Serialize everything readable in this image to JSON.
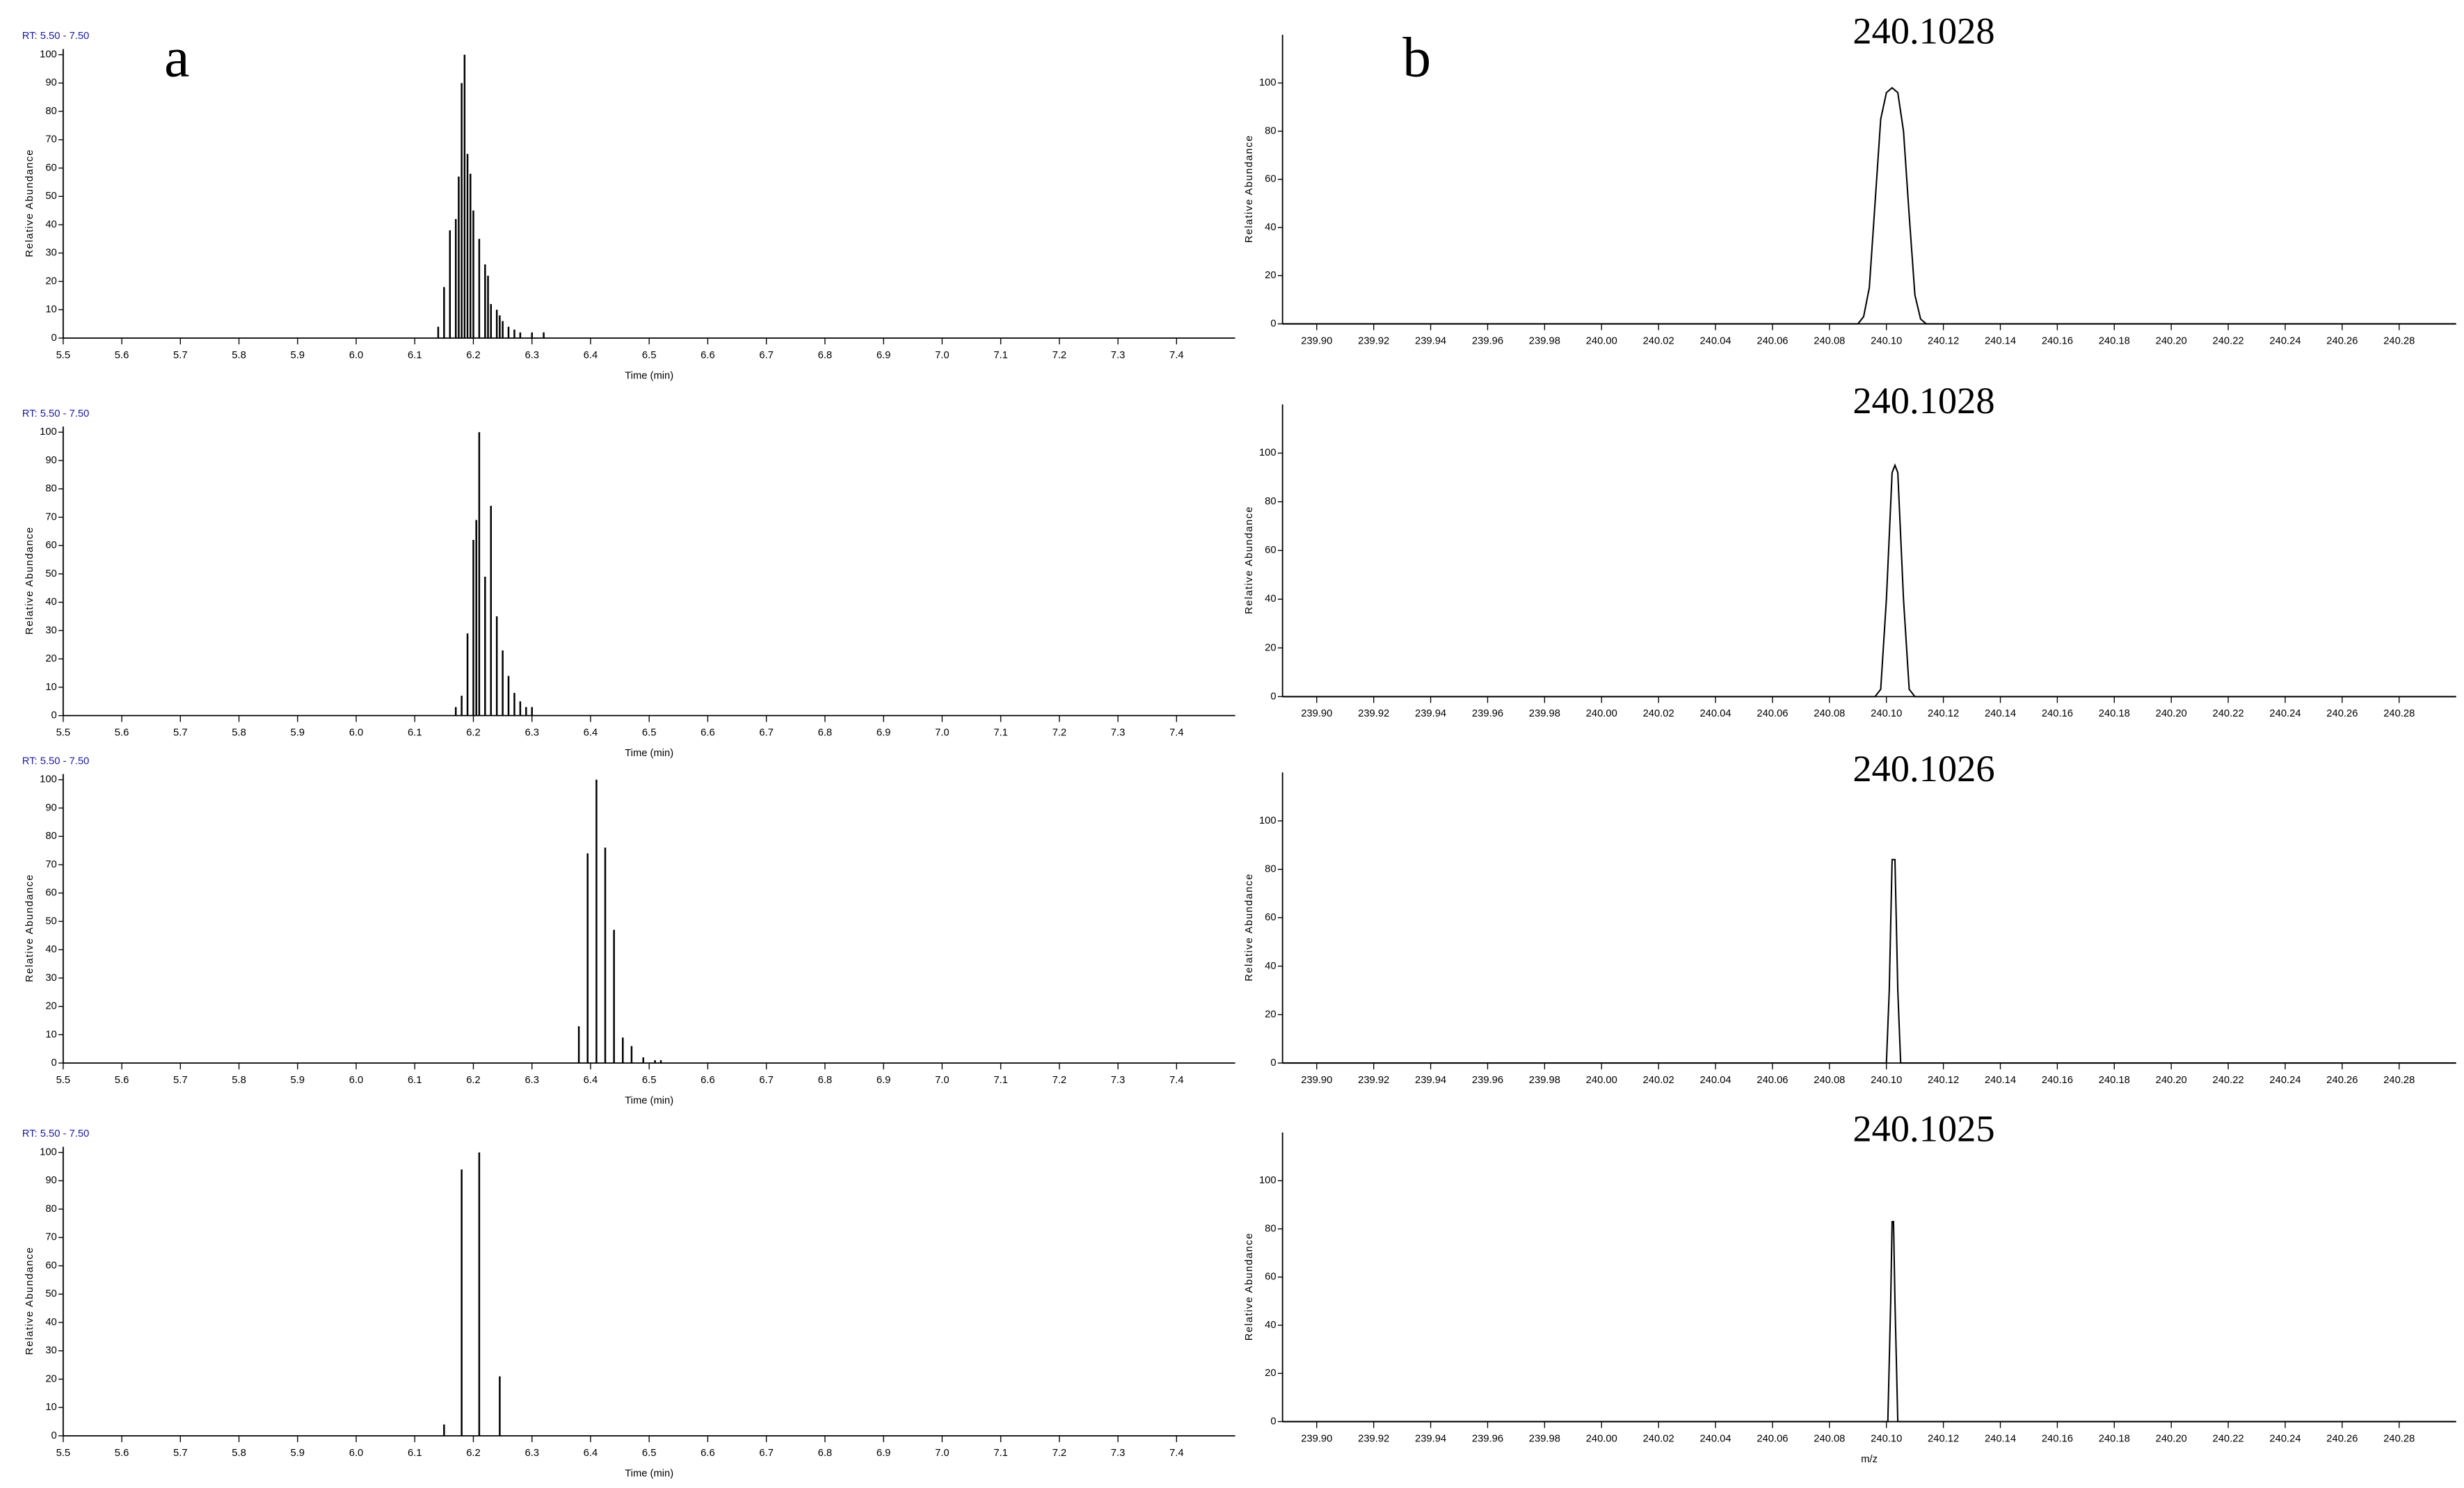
{
  "chart_data": [
    {
      "type": "bar",
      "header": "RT: 5.50 - 7.50",
      "panel_label": "a",
      "x_label": "Time (min)",
      "y_label": "Relative Abundance",
      "color": "#000000",
      "x": [
        6.14,
        6.15,
        6.16,
        6.17,
        6.175,
        6.18,
        6.185,
        6.19,
        6.195,
        6.2,
        6.21,
        6.22,
        6.225,
        6.23,
        6.24,
        6.245,
        6.25,
        6.26,
        6.27,
        6.28,
        6.3,
        6.32
      ],
      "values": [
        4,
        18,
        38,
        42,
        57,
        90,
        100,
        65,
        58,
        45,
        35,
        26,
        22,
        12,
        10,
        8,
        6,
        4,
        3,
        2,
        2,
        2
      ],
      "xlim": [
        5.5,
        7.5
      ],
      "xticks": [
        5.5,
        5.6,
        5.7,
        5.8,
        5.9,
        {
          "value": 6,
          "label": "6.0"
        },
        6.1,
        6.2,
        6.3,
        6.4,
        6.5,
        6.6,
        6.7,
        6.8,
        6.9,
        {
          "value": 7,
          "label": "7.0"
        },
        7.1,
        7.2,
        7.3,
        7.4
      ],
      "ylim": [
        0,
        102
      ],
      "yticks": [
        0,
        10,
        20,
        30,
        40,
        50,
        60,
        70,
        80,
        90,
        100
      ]
    },
    {
      "type": "bar",
      "header": "RT: 5.50 - 7.50",
      "x_label": "Time (min)",
      "y_label": "Relative Abundance",
      "color": "#000000",
      "x": [
        6.17,
        6.18,
        6.19,
        6.2,
        6.205,
        6.21,
        6.22,
        6.23,
        6.24,
        6.25,
        6.26,
        6.27,
        6.28,
        6.29,
        6.3
      ],
      "values": [
        3,
        7,
        29,
        62,
        69,
        100,
        49,
        74,
        35,
        23,
        14,
        8,
        5,
        3,
        3
      ],
      "xlim": [
        5.5,
        7.5
      ],
      "xticks": [
        5.5,
        5.6,
        5.7,
        5.8,
        5.9,
        {
          "value": 6,
          "label": "6.0"
        },
        6.1,
        6.2,
        6.3,
        6.4,
        6.5,
        6.6,
        6.7,
        6.8,
        6.9,
        {
          "value": 7,
          "label": "7.0"
        },
        7.1,
        7.2,
        7.3,
        7.4
      ],
      "ylim": [
        0,
        102
      ],
      "yticks": [
        0,
        10,
        20,
        30,
        40,
        50,
        60,
        70,
        80,
        90,
        100
      ]
    },
    {
      "type": "bar",
      "header": "RT: 5.50 - 7.50",
      "x_label": "Time (min)",
      "y_label": "Relative Abundance",
      "color": "#000000",
      "x": [
        6.38,
        6.395,
        6.41,
        6.425,
        6.44,
        6.455,
        6.47,
        6.49,
        6.51,
        6.52
      ],
      "values": [
        13,
        74,
        100,
        76,
        47,
        9,
        6,
        2,
        1,
        1
      ],
      "xlim": [
        5.5,
        7.5
      ],
      "xticks": [
        5.5,
        5.6,
        5.7,
        5.8,
        5.9,
        {
          "value": 6,
          "label": "6.0"
        },
        6.1,
        6.2,
        6.3,
        6.4,
        6.5,
        6.6,
        6.7,
        6.8,
        6.9,
        {
          "value": 7,
          "label": "7.0"
        },
        7.1,
        7.2,
        7.3,
        7.4
      ],
      "ylim": [
        0,
        102
      ],
      "yticks": [
        0,
        10,
        20,
        30,
        40,
        50,
        60,
        70,
        80,
        90,
        100
      ]
    },
    {
      "type": "bar",
      "header": "RT: 5.50 - 7.50",
      "x_label": "Time (min)",
      "y_label": "Relative Abundance",
      "color": "#000000",
      "x": [
        6.15,
        6.18,
        6.21,
        6.245
      ],
      "values": [
        4,
        94,
        100,
        21
      ],
      "xlim": [
        5.5,
        7.5
      ],
      "xticks": [
        5.5,
        5.6,
        5.7,
        5.8,
        5.9,
        {
          "value": 6,
          "label": "6.0"
        },
        6.1,
        6.2,
        6.3,
        6.4,
        6.5,
        6.6,
        6.7,
        6.8,
        6.9,
        {
          "value": 7,
          "label": "7.0"
        },
        7.1,
        7.2,
        7.3,
        7.4
      ],
      "ylim": [
        0,
        102
      ],
      "yticks": [
        0,
        10,
        20,
        30,
        40,
        50,
        60,
        70,
        80,
        90,
        100
      ]
    },
    {
      "type": "line",
      "panel_label": "b",
      "annotation": "240.1028",
      "y_label": "Relative Abundance",
      "color": "#000000",
      "x": [
        239.888,
        240.09,
        240.092,
        240.094,
        240.096,
        240.098,
        240.1,
        240.102,
        240.104,
        240.106,
        240.108,
        240.11,
        240.112,
        240.114,
        240.3
      ],
      "values": [
        0,
        0,
        3,
        15,
        50,
        85,
        96,
        98,
        96,
        80,
        45,
        12,
        2,
        0,
        0
      ],
      "xlim": [
        239.888,
        240.3
      ],
      "xticks": [
        {
          "value": 239.9,
          "label": "239.90"
        },
        239.92,
        239.94,
        239.96,
        239.98,
        {
          "value": 240,
          "label": "240.00"
        },
        240.02,
        240.04,
        240.06,
        240.08,
        {
          "value": 240.1,
          "label": "240.10"
        },
        240.12,
        240.14,
        240.16,
        240.18,
        {
          "value": 240.2,
          "label": "240.20"
        },
        240.22,
        240.24,
        240.26,
        240.28
      ],
      "ylim": [
        0,
        120
      ],
      "yticks": [
        0,
        20,
        40,
        60,
        80,
        100
      ]
    },
    {
      "type": "line",
      "annotation": "240.1028",
      "y_label": "Relative Abundance",
      "color": "#000000",
      "x": [
        239.888,
        240.096,
        240.098,
        240.1,
        240.102,
        240.103,
        240.104,
        240.106,
        240.108,
        240.11,
        240.3
      ],
      "values": [
        0,
        0,
        3,
        40,
        92,
        95,
        92,
        40,
        3,
        0,
        0
      ],
      "xlim": [
        239.888,
        240.3
      ],
      "xticks": [
        {
          "value": 239.9,
          "label": "239.90"
        },
        239.92,
        239.94,
        239.96,
        239.98,
        {
          "value": 240,
          "label": "240.00"
        },
        240.02,
        240.04,
        240.06,
        240.08,
        {
          "value": 240.1,
          "label": "240.10"
        },
        240.12,
        240.14,
        240.16,
        240.18,
        {
          "value": 240.2,
          "label": "240.20"
        },
        240.22,
        240.24,
        240.26,
        240.28
      ],
      "ylim": [
        0,
        120
      ],
      "yticks": [
        0,
        20,
        40,
        60,
        80,
        100
      ]
    },
    {
      "type": "line",
      "annotation": "240.1026",
      "y_label": "Relative Abundance",
      "color": "#000000",
      "x": [
        239.888,
        240.1,
        240.101,
        240.102,
        240.103,
        240.104,
        240.105,
        240.3
      ],
      "values": [
        0,
        0,
        30,
        84,
        84,
        30,
        0,
        0
      ],
      "xlim": [
        239.888,
        240.3
      ],
      "xticks": [
        {
          "value": 239.9,
          "label": "239.90"
        },
        239.92,
        239.94,
        239.96,
        239.98,
        {
          "value": 240,
          "label": "240.00"
        },
        240.02,
        240.04,
        240.06,
        240.08,
        {
          "value": 240.1,
          "label": "240.10"
        },
        240.12,
        240.14,
        240.16,
        240.18,
        {
          "value": 240.2,
          "label": "240.20"
        },
        240.22,
        240.24,
        240.26,
        240.28
      ],
      "ylim": [
        0,
        120
      ],
      "yticks": [
        0,
        20,
        40,
        60,
        80,
        100
      ]
    },
    {
      "type": "line",
      "annotation": "240.1025",
      "x_label": "m/z",
      "y_label": "Relative Abundance",
      "color": "#000000",
      "x": [
        239.888,
        240.1005,
        240.1015,
        240.102,
        240.1025,
        240.103,
        240.104,
        240.3
      ],
      "values": [
        0,
        0,
        50,
        83,
        83,
        50,
        0,
        0
      ],
      "xlim": [
        239.888,
        240.3
      ],
      "xticks": [
        {
          "value": 239.9,
          "label": "239.90"
        },
        239.92,
        239.94,
        239.96,
        239.98,
        {
          "value": 240,
          "label": "240.00"
        },
        240.02,
        240.04,
        240.06,
        240.08,
        {
          "value": 240.1,
          "label": "240.10"
        },
        240.12,
        240.14,
        240.16,
        240.18,
        {
          "value": 240.2,
          "label": "240.20"
        },
        240.22,
        240.24,
        240.26,
        240.28
      ],
      "ylim": [
        0,
        120
      ],
      "yticks": [
        0,
        20,
        40,
        60,
        80,
        100
      ]
    }
  ]
}
